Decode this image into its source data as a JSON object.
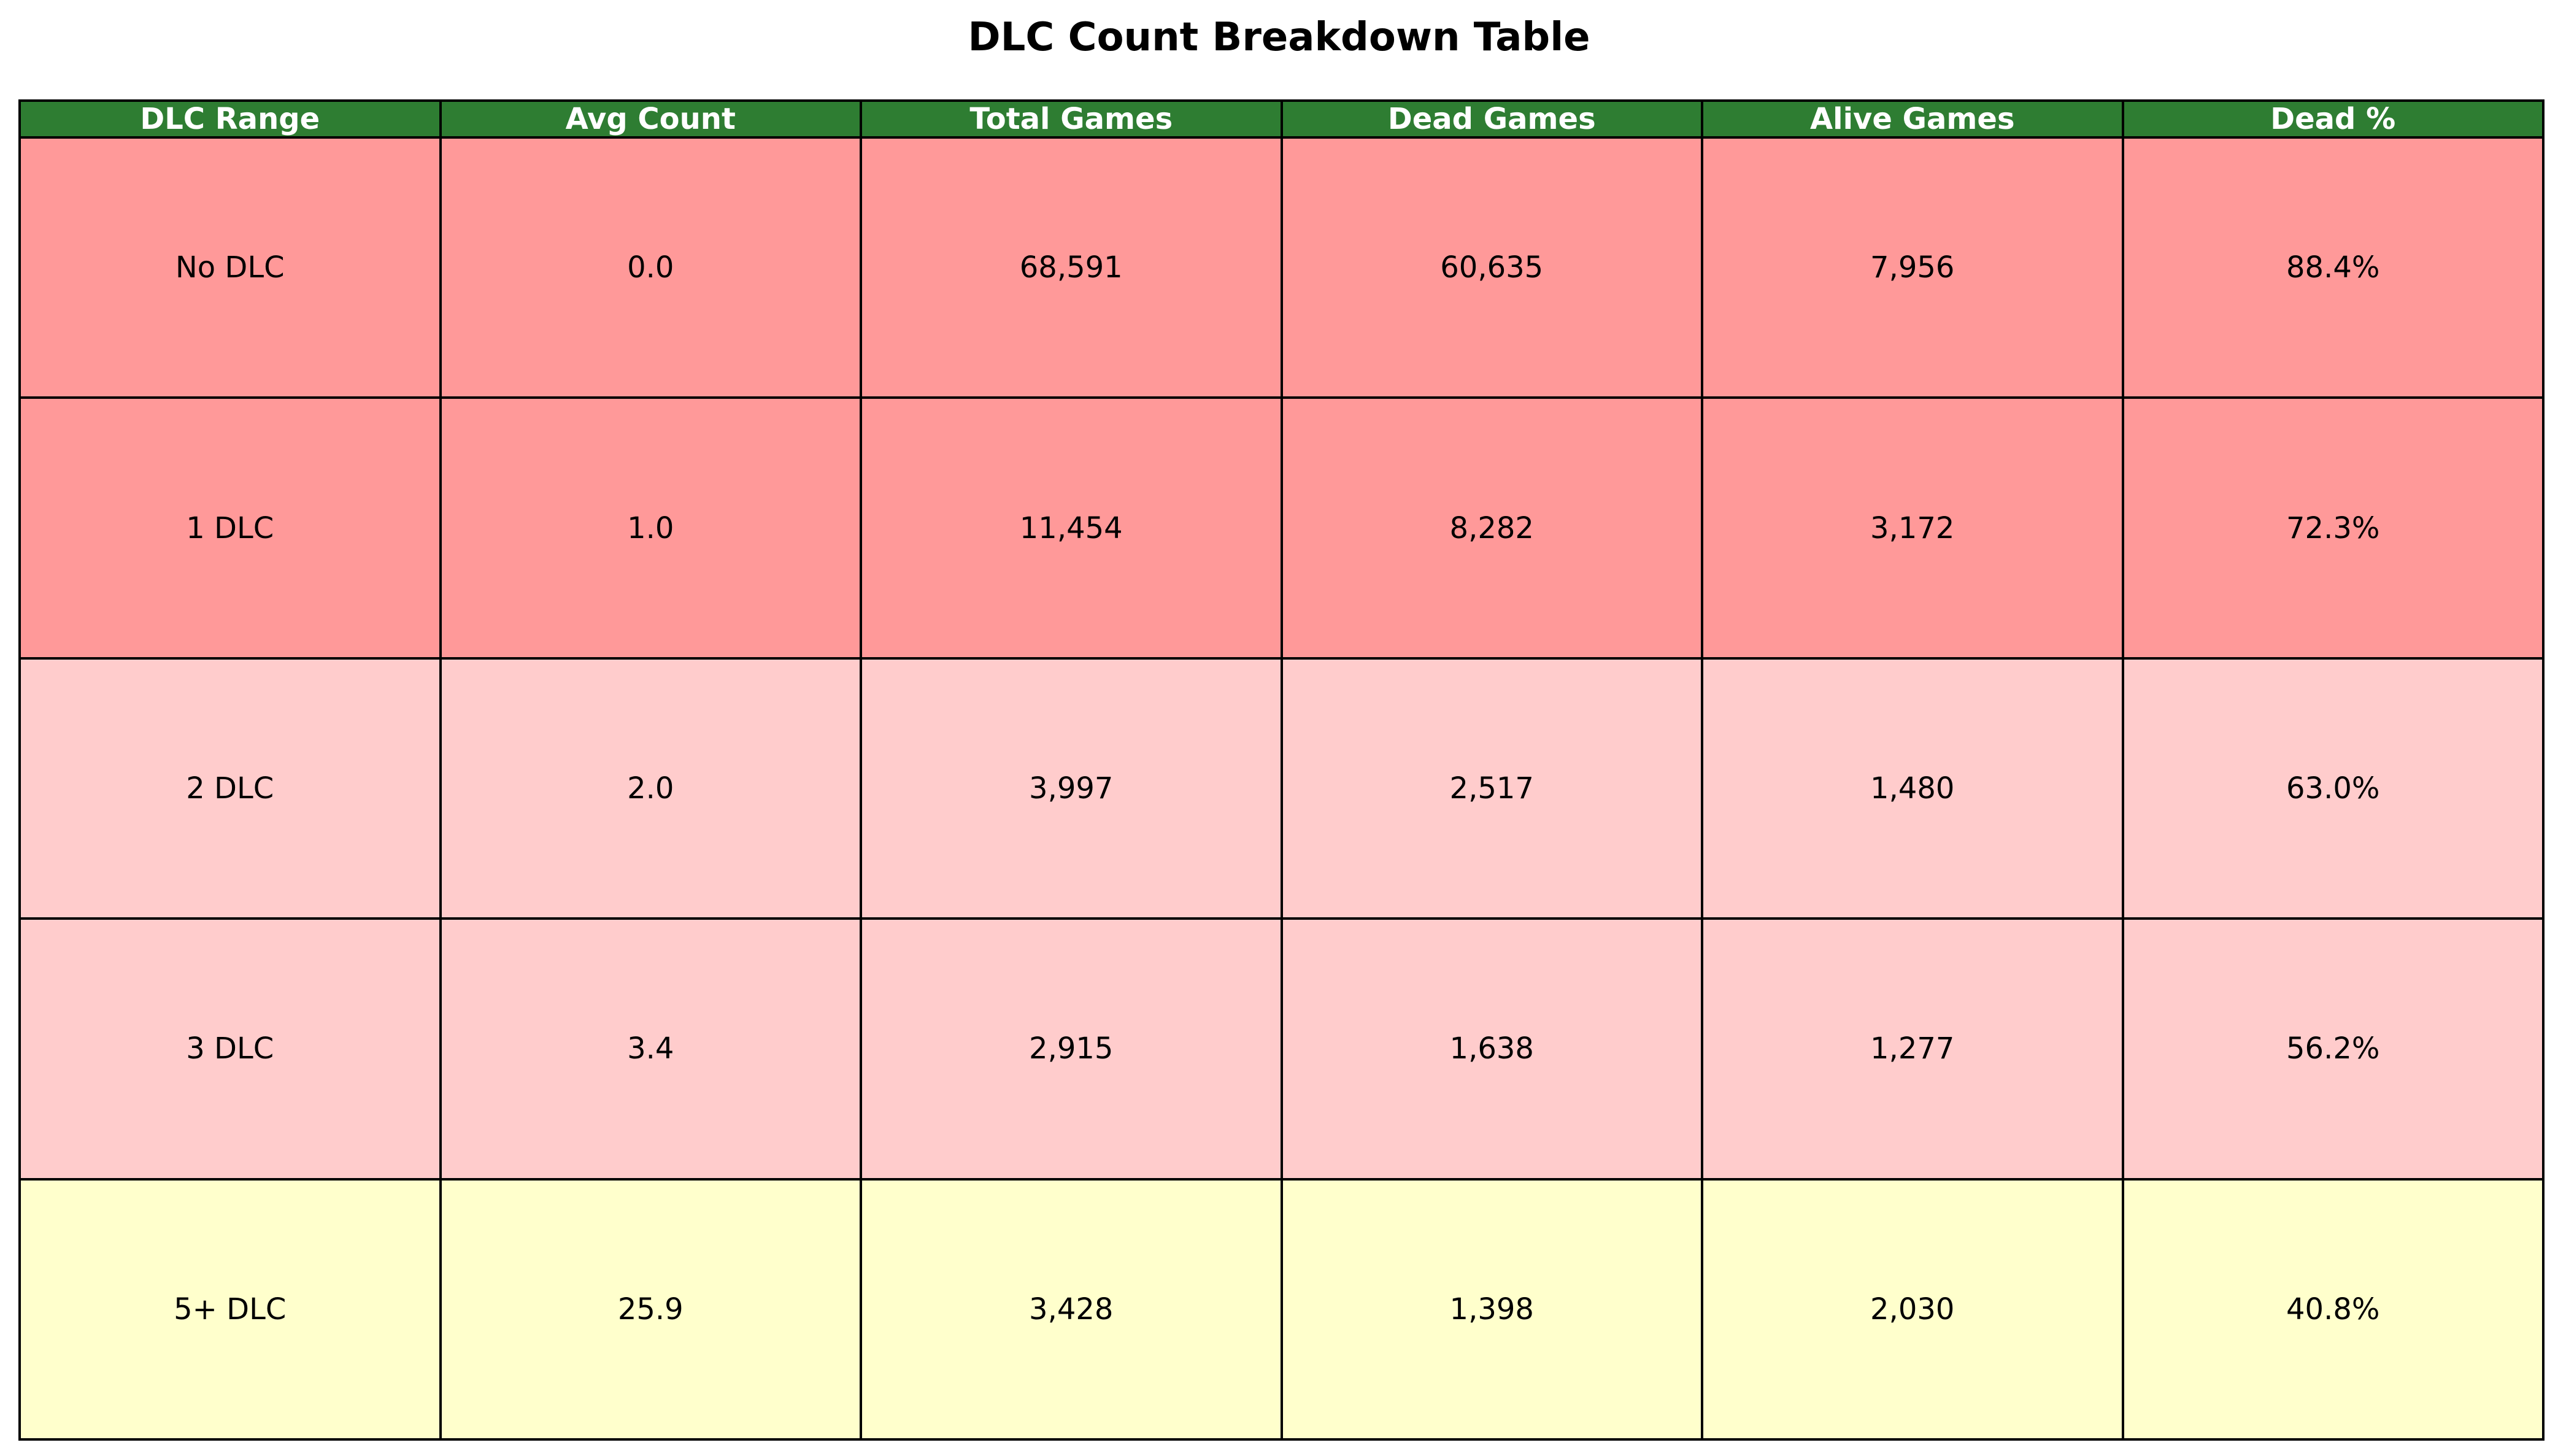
{
  "title": "DLC Count Breakdown Table",
  "colors": {
    "header_bg": "#2e7d32",
    "header_text": "#ffffff",
    "row_high": "#ff9999",
    "row_mid": "#ffcccc",
    "row_low": "#ffffcc",
    "border": "#000000"
  },
  "chart_data": {
    "type": "table",
    "title": "DLC Count Breakdown Table",
    "columns": [
      "DLC Range",
      "Avg Count",
      "Total Games",
      "Dead Games",
      "Alive Games",
      "Dead %"
    ],
    "rows": [
      {
        "cells": [
          "No DLC",
          "0.0",
          "68,591",
          "60,635",
          "7,956",
          "88.4%"
        ],
        "shade": "high"
      },
      {
        "cells": [
          "1 DLC",
          "1.0",
          "11,454",
          "8,282",
          "3,172",
          "72.3%"
        ],
        "shade": "high"
      },
      {
        "cells": [
          "2 DLC",
          "2.0",
          "3,997",
          "2,517",
          "1,480",
          "63.0%"
        ],
        "shade": "mid"
      },
      {
        "cells": [
          "3 DLC",
          "3.4",
          "2,915",
          "1,638",
          "1,277",
          "56.2%"
        ],
        "shade": "mid"
      },
      {
        "cells": [
          "5+ DLC",
          "25.9",
          "3,428",
          "1,398",
          "2,030",
          "40.8%"
        ],
        "shade": "low"
      }
    ]
  }
}
